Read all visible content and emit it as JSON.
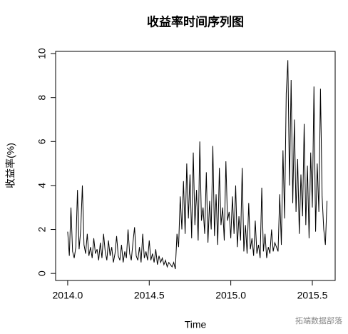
{
  "chart_data": {
    "type": "line",
    "title": "收益率时间序列图",
    "xlabel": "Time",
    "ylabel": "收益率(%)",
    "annotation": "拓端数据部落",
    "xlim": [
      2013.926,
      2015.64
    ],
    "ylim": [
      -0.32,
      10.1
    ],
    "xticks": [
      {
        "value": 2014,
        "label": "2014.0"
      },
      2014.5,
      {
        "value": 2015,
        "label": "2015.0"
      },
      2015.5
    ],
    "yticks": [
      0,
      2,
      4,
      6,
      8,
      10
    ],
    "grid": false,
    "series": [
      {
        "name": "收益率",
        "color": "#000000",
        "x": [
          2014.0,
          2014.01,
          2014.02,
          2014.03,
          2014.04,
          2014.05,
          2014.06,
          2014.07,
          2014.08,
          2014.09,
          2014.1,
          2014.11,
          2014.12,
          2014.13,
          2014.14,
          2014.15,
          2014.16,
          2014.17,
          2014.18,
          2014.19,
          2014.2,
          2014.21,
          2014.22,
          2014.23,
          2014.24,
          2014.25,
          2014.26,
          2014.27,
          2014.28,
          2014.29,
          2014.3,
          2014.31,
          2014.32,
          2014.33,
          2014.34,
          2014.35,
          2014.36,
          2014.37,
          2014.38,
          2014.39,
          2014.4,
          2014.41,
          2014.42,
          2014.43,
          2014.44,
          2014.45,
          2014.46,
          2014.47,
          2014.48,
          2014.49,
          2014.5,
          2014.51,
          2014.52,
          2014.53,
          2014.54,
          2014.55,
          2014.56,
          2014.57,
          2014.58,
          2014.59,
          2014.6,
          2014.61,
          2014.62,
          2014.63,
          2014.64,
          2014.65,
          2014.66,
          2014.67,
          2014.68,
          2014.69,
          2014.7,
          2014.71,
          2014.72,
          2014.73,
          2014.74,
          2014.75,
          2014.76,
          2014.77,
          2014.78,
          2014.79,
          2014.8,
          2014.81,
          2014.82,
          2014.83,
          2014.84,
          2014.85,
          2014.86,
          2014.87,
          2014.88,
          2014.89,
          2014.9,
          2014.91,
          2014.92,
          2014.93,
          2014.94,
          2014.95,
          2014.96,
          2014.97,
          2014.98,
          2014.99,
          2015.0,
          2015.01,
          2015.02,
          2015.03,
          2015.04,
          2015.05,
          2015.06,
          2015.07,
          2015.08,
          2015.09,
          2015.1,
          2015.11,
          2015.12,
          2015.13,
          2015.14,
          2015.15,
          2015.16,
          2015.17,
          2015.18,
          2015.19,
          2015.2,
          2015.21,
          2015.22,
          2015.23,
          2015.24,
          2015.25,
          2015.26,
          2015.27,
          2015.28,
          2015.29,
          2015.3,
          2015.31,
          2015.32,
          2015.33,
          2015.34,
          2015.35,
          2015.36,
          2015.37,
          2015.38,
          2015.39,
          2015.4,
          2015.41,
          2015.42,
          2015.43,
          2015.44,
          2015.45,
          2015.46,
          2015.47,
          2015.48,
          2015.49,
          2015.5,
          2015.51,
          2015.52,
          2015.53,
          2015.54,
          2015.55,
          2015.56,
          2015.57,
          2015.58,
          2015.59
        ],
        "values": [
          1.9,
          0.8,
          3.0,
          1.0,
          0.7,
          1.2,
          3.8,
          1.1,
          2.0,
          4.0,
          1.3,
          0.9,
          1.8,
          0.8,
          1.2,
          0.7,
          1.6,
          0.9,
          1.1,
          0.6,
          1.4,
          0.7,
          1.8,
          1.0,
          0.6,
          1.5,
          0.8,
          1.2,
          0.5,
          0.9,
          1.7,
          0.8,
          0.6,
          1.3,
          0.5,
          1.0,
          0.7,
          2.0,
          0.9,
          0.6,
          1.4,
          2.1,
          0.8,
          0.6,
          1.2,
          0.5,
          1.8,
          0.7,
          1.0,
          0.6,
          1.5,
          0.6,
          0.9,
          0.5,
          1.1,
          0.4,
          0.8,
          0.5,
          0.7,
          0.4,
          0.6,
          0.3,
          0.5,
          0.4,
          0.3,
          0.5,
          0.2,
          1.8,
          1.2,
          3.5,
          2.0,
          4.2,
          1.8,
          5.0,
          2.5,
          4.5,
          1.6,
          5.5,
          2.2,
          3.8,
          1.5,
          6.0,
          2.4,
          3.0,
          1.8,
          4.6,
          1.4,
          3.3,
          2.0,
          5.8,
          1.7,
          3.6,
          1.3,
          4.8,
          2.2,
          3.0,
          1.5,
          5.1,
          2.4,
          2.8,
          1.6,
          3.5,
          1.8,
          4.0,
          1.2,
          2.6,
          1.5,
          4.8,
          1.0,
          2.2,
          0.9,
          3.2,
          1.1,
          1.6,
          0.8,
          2.4,
          0.9,
          1.3,
          0.7,
          3.9,
          1.0,
          1.8,
          0.7,
          1.2,
          0.9,
          2.0,
          1.0,
          1.4,
          1.2,
          1.0,
          3.6,
          1.3,
          5.6,
          2.5,
          8.2,
          9.7,
          4.0,
          8.8,
          3.2,
          7.0,
          2.8,
          5.2,
          1.8,
          4.5,
          2.6,
          6.8,
          2.2,
          4.9,
          1.6,
          5.5,
          3.0,
          8.5,
          1.9,
          5.0,
          2.8,
          8.4,
          3.5,
          2.0,
          1.3,
          3.3
        ]
      }
    ]
  }
}
